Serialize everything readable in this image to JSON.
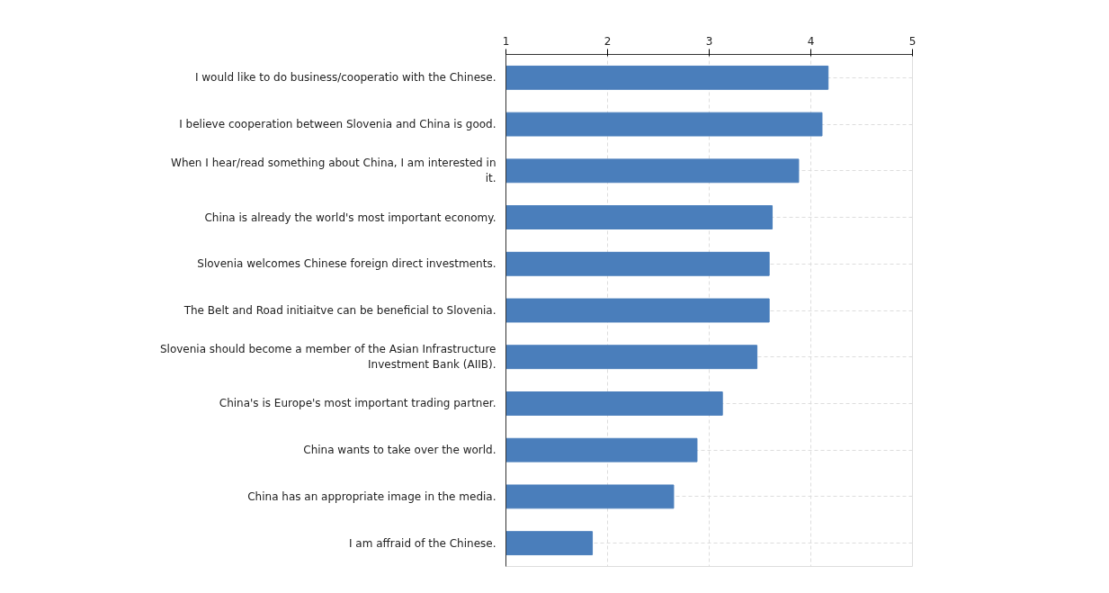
{
  "chart_data": {
    "type": "bar",
    "orientation": "horizontal",
    "categories": [
      "I would like to do business/cooperatio with the Chinese.",
      "I believe cooperation between Slovenia and China is good.",
      "When I hear/read something about China, I am interested in it.",
      "China is already the world's most important economy.",
      "Slovenia welcomes Chinese foreign direct investments.",
      "The Belt and Road initiaitve can be beneficial to Slovenia.",
      "Slovenia should become a member of the Asian Infrastructure Investment Bank (AIIB).",
      "China's is Europe's most important trading partner.",
      "China wants to take over the world.",
      "China has an appropriate image in the media.",
      "I am affraid of the Chinese."
    ],
    "values": [
      4.17,
      4.11,
      3.88,
      3.62,
      3.59,
      3.59,
      3.47,
      3.13,
      2.88,
      2.65,
      1.85
    ],
    "color": "#4a7ebb",
    "xlim": [
      1,
      5
    ],
    "xticks": [
      1,
      2,
      3,
      4,
      5
    ],
    "grid": true
  }
}
